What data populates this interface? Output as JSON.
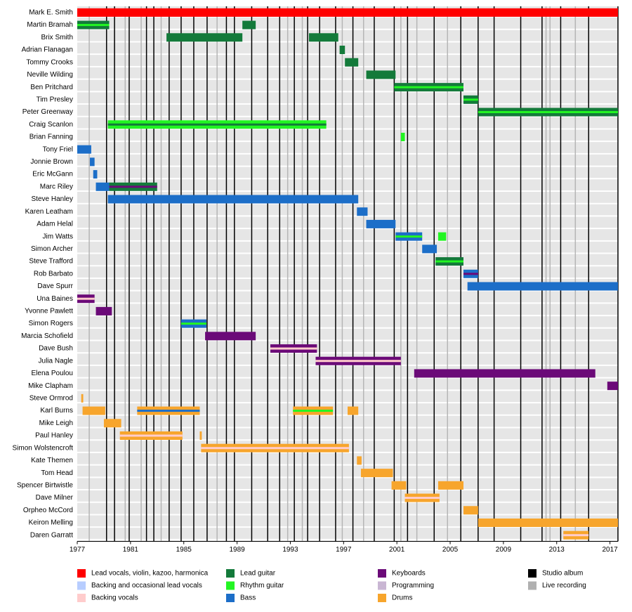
{
  "chart_data": {
    "type": "timeline",
    "xlim": [
      1977,
      2017.6
    ],
    "xticks": [
      1977,
      1981,
      1985,
      1989,
      1993,
      1997,
      2001,
      2005,
      2009,
      2013,
      2017
    ],
    "roles": [
      {
        "name": "Lead vocals, violin, kazoo, harmonica",
        "color": "#ff0000"
      },
      {
        "name": "Backing and occasional lead vocals",
        "color": "#b7cdff"
      },
      {
        "name": "Backing vocals",
        "color": "#ffcccc"
      },
      {
        "name": "Lead guitar",
        "color": "#137a3a"
      },
      {
        "name": "Rhythm guitar",
        "color": "#22f522"
      },
      {
        "name": "Bass",
        "color": "#1c6ec8"
      },
      {
        "name": "Keyboards",
        "color": "#6b0a78"
      },
      {
        "name": "Programming",
        "color": "#c9b6d3"
      },
      {
        "name": "Drums",
        "color": "#f7a52c"
      }
    ],
    "album_types": [
      {
        "name": "Studio album",
        "color": "#000000",
        "years": [
          1979.2,
          1979.8,
          1980.9,
          1982.2,
          1982.75,
          1983.9,
          1984.8,
          1985.75,
          1986.75,
          1988.2,
          1988.8,
          1990.1,
          1991.3,
          1992.2,
          1993.3,
          1994.3,
          1995.2,
          1996.4,
          1997.7,
          1999.3,
          2000.8,
          2001.8,
          2003.8,
          2005.8,
          2007.1,
          2008.3,
          2010.3,
          2011.9,
          2013.3,
          2015.4,
          2017.6
        ]
      },
      {
        "name": "Live recording",
        "color": "#b0b0b0",
        "years": [
          1977.9,
          1980.6,
          1981.8,
          1983.3,
          1987.5,
          1992.8,
          1993.9,
          1996.9,
          1998.5,
          2001.3,
          2002.5,
          2004.8,
          2012.2,
          2012.5,
          2014.4
        ]
      }
    ],
    "members": [
      {
        "name": "Mark E. Smith",
        "periods": [
          {
            "start": 1977,
            "end": 2017.6,
            "role": 0
          }
        ]
      },
      {
        "name": "Martin Bramah",
        "periods": [
          {
            "start": 1977,
            "end": 1979.4,
            "role": 3,
            "stripe": 4
          },
          {
            "start": 1989.4,
            "end": 1990.4,
            "role": 3
          }
        ]
      },
      {
        "name": "Brix Smith",
        "periods": [
          {
            "start": 1983.7,
            "end": 1989.4,
            "role": 3
          },
          {
            "start": 1994.4,
            "end": 1996.6,
            "role": 3
          }
        ]
      },
      {
        "name": "Adrian Flanagan",
        "periods": [
          {
            "start": 1996.7,
            "end": 1997.1,
            "role": 3
          }
        ]
      },
      {
        "name": "Tommy Crooks",
        "periods": [
          {
            "start": 1997.1,
            "end": 1998.1,
            "role": 3
          }
        ]
      },
      {
        "name": "Neville Wilding",
        "periods": [
          {
            "start": 1998.7,
            "end": 2000.9,
            "role": 3
          }
        ]
      },
      {
        "name": "Ben Pritchard",
        "periods": [
          {
            "start": 2000.8,
            "end": 2006.0,
            "role": 3,
            "stripe": 4
          }
        ]
      },
      {
        "name": "Tim Presley",
        "periods": [
          {
            "start": 2006.0,
            "end": 2007.1,
            "role": 3,
            "stripe": 4
          }
        ]
      },
      {
        "name": "Peter Greenway",
        "periods": [
          {
            "start": 2007.1,
            "end": 2017.6,
            "role": 3,
            "stripe": 4
          }
        ]
      },
      {
        "name": "Craig Scanlon",
        "periods": [
          {
            "start": 1979.3,
            "end": 1995.7,
            "role": 4,
            "stripe": 3
          }
        ]
      },
      {
        "name": "Brian Fanning",
        "periods": [
          {
            "start": 2001.3,
            "end": 2001.6,
            "role": 4
          }
        ]
      },
      {
        "name": "Tony Friel",
        "periods": [
          {
            "start": 1977,
            "end": 1978.05,
            "role": 5
          }
        ]
      },
      {
        "name": "Jonnie Brown",
        "periods": [
          {
            "start": 1977.95,
            "end": 1978.3,
            "role": 5
          }
        ]
      },
      {
        "name": "Eric McGann",
        "periods": [
          {
            "start": 1978.2,
            "end": 1978.5,
            "role": 5
          }
        ]
      },
      {
        "name": "Marc Riley",
        "periods": [
          {
            "start": 1978.4,
            "end": 1979.4,
            "role": 5
          },
          {
            "start": 1979.4,
            "end": 1983.0,
            "role": 3,
            "stripe": 6
          }
        ]
      },
      {
        "name": "Steve Hanley",
        "periods": [
          {
            "start": 1979.3,
            "end": 1998.1,
            "role": 5
          }
        ]
      },
      {
        "name": "Karen Leatham",
        "periods": [
          {
            "start": 1998.0,
            "end": 1998.8,
            "role": 5
          }
        ]
      },
      {
        "name": "Adam Helal",
        "periods": [
          {
            "start": 1998.7,
            "end": 2000.9,
            "role": 5
          }
        ]
      },
      {
        "name": "Jim Watts",
        "periods": [
          {
            "start": 2000.9,
            "end": 2002.9,
            "role": 5,
            "stripe": 4
          },
          {
            "start": 2004.1,
            "end": 2004.7,
            "role": 4
          }
        ]
      },
      {
        "name": "Simon Archer",
        "periods": [
          {
            "start": 2002.9,
            "end": 2004.0,
            "role": 5
          }
        ]
      },
      {
        "name": "Steve Trafford",
        "periods": [
          {
            "start": 2003.9,
            "end": 2006.0,
            "role": 3,
            "stripe": 4
          }
        ]
      },
      {
        "name": "Rob Barbato",
        "periods": [
          {
            "start": 2006.0,
            "end": 2007.1,
            "role": 5,
            "stripe": 6
          }
        ]
      },
      {
        "name": "Dave Spurr",
        "periods": [
          {
            "start": 2006.3,
            "end": 2017.6,
            "role": 5
          }
        ]
      },
      {
        "name": "Una Baines",
        "periods": [
          {
            "start": 1977,
            "end": 1978.3,
            "role": 6,
            "stripe": 2
          }
        ]
      },
      {
        "name": "Yvonne Pawlett",
        "periods": [
          {
            "start": 1978.4,
            "end": 1979.6,
            "role": 6
          }
        ]
      },
      {
        "name": "Simon Rogers",
        "periods": [
          {
            "start": 1984.8,
            "end": 1986.7,
            "role": 5,
            "stripe": 4
          }
        ]
      },
      {
        "name": "Marcia Schofield",
        "periods": [
          {
            "start": 1986.6,
            "end": 1990.4,
            "role": 6
          }
        ]
      },
      {
        "name": "Dave Bush",
        "periods": [
          {
            "start": 1991.5,
            "end": 1995.0,
            "role": 6,
            "stripe": 2
          }
        ]
      },
      {
        "name": "Julia Nagle",
        "periods": [
          {
            "start": 1994.9,
            "end": 2001.3,
            "role": 6,
            "stripe": 2
          }
        ]
      },
      {
        "name": "Elena Poulou",
        "periods": [
          {
            "start": 2002.3,
            "end": 2015.9,
            "role": 6
          }
        ]
      },
      {
        "name": "Mike Clapham",
        "periods": [
          {
            "start": 2016.8,
            "end": 2017.6,
            "role": 6
          }
        ]
      },
      {
        "name": "Steve Ormrod",
        "periods": [
          {
            "start": 1977.3,
            "end": 1977.45,
            "role": 8
          }
        ]
      },
      {
        "name": "Karl Burns",
        "periods": [
          {
            "start": 1977.4,
            "end": 1979.1,
            "role": 8
          },
          {
            "start": 1981.5,
            "end": 1986.2,
            "role": 8,
            "stripe": 5
          },
          {
            "start": 1993.2,
            "end": 1996.2,
            "role": 8,
            "stripe": 4
          },
          {
            "start": 1997.3,
            "end": 1998.1,
            "role": 8
          }
        ]
      },
      {
        "name": "Mike Leigh",
        "periods": [
          {
            "start": 1979.0,
            "end": 1980.3,
            "role": 8
          }
        ]
      },
      {
        "name": "Paul Hanley",
        "periods": [
          {
            "start": 1980.2,
            "end": 1984.9,
            "role": 8,
            "stripe": 2
          },
          {
            "start": 1986.2,
            "end": 1986.35,
            "role": 8
          }
        ]
      },
      {
        "name": "Simon Wolstencroft",
        "periods": [
          {
            "start": 1986.3,
            "end": 1997.4,
            "role": 8,
            "stripe": 2
          }
        ]
      },
      {
        "name": "Kate Themen",
        "periods": [
          {
            "start": 1998.0,
            "end": 1998.35,
            "role": 8
          }
        ]
      },
      {
        "name": "Tom Head",
        "periods": [
          {
            "start": 1998.3,
            "end": 2000.7,
            "role": 8
          }
        ]
      },
      {
        "name": "Spencer Birtwistle",
        "periods": [
          {
            "start": 2000.6,
            "end": 2001.7,
            "role": 8
          },
          {
            "start": 2004.1,
            "end": 2006.0,
            "role": 8
          }
        ]
      },
      {
        "name": "Dave Milner",
        "periods": [
          {
            "start": 2001.6,
            "end": 2004.2,
            "role": 8,
            "stripe": 2
          }
        ]
      },
      {
        "name": "Orpheo McCord",
        "periods": [
          {
            "start": 2006.0,
            "end": 2007.1,
            "role": 8
          }
        ]
      },
      {
        "name": "Keiron Melling",
        "periods": [
          {
            "start": 2007.1,
            "end": 2017.6,
            "role": 8
          }
        ]
      },
      {
        "name": "Daren Garratt",
        "periods": [
          {
            "start": 2013.5,
            "end": 2015.4,
            "role": 8,
            "stripe": 2
          }
        ]
      }
    ]
  }
}
